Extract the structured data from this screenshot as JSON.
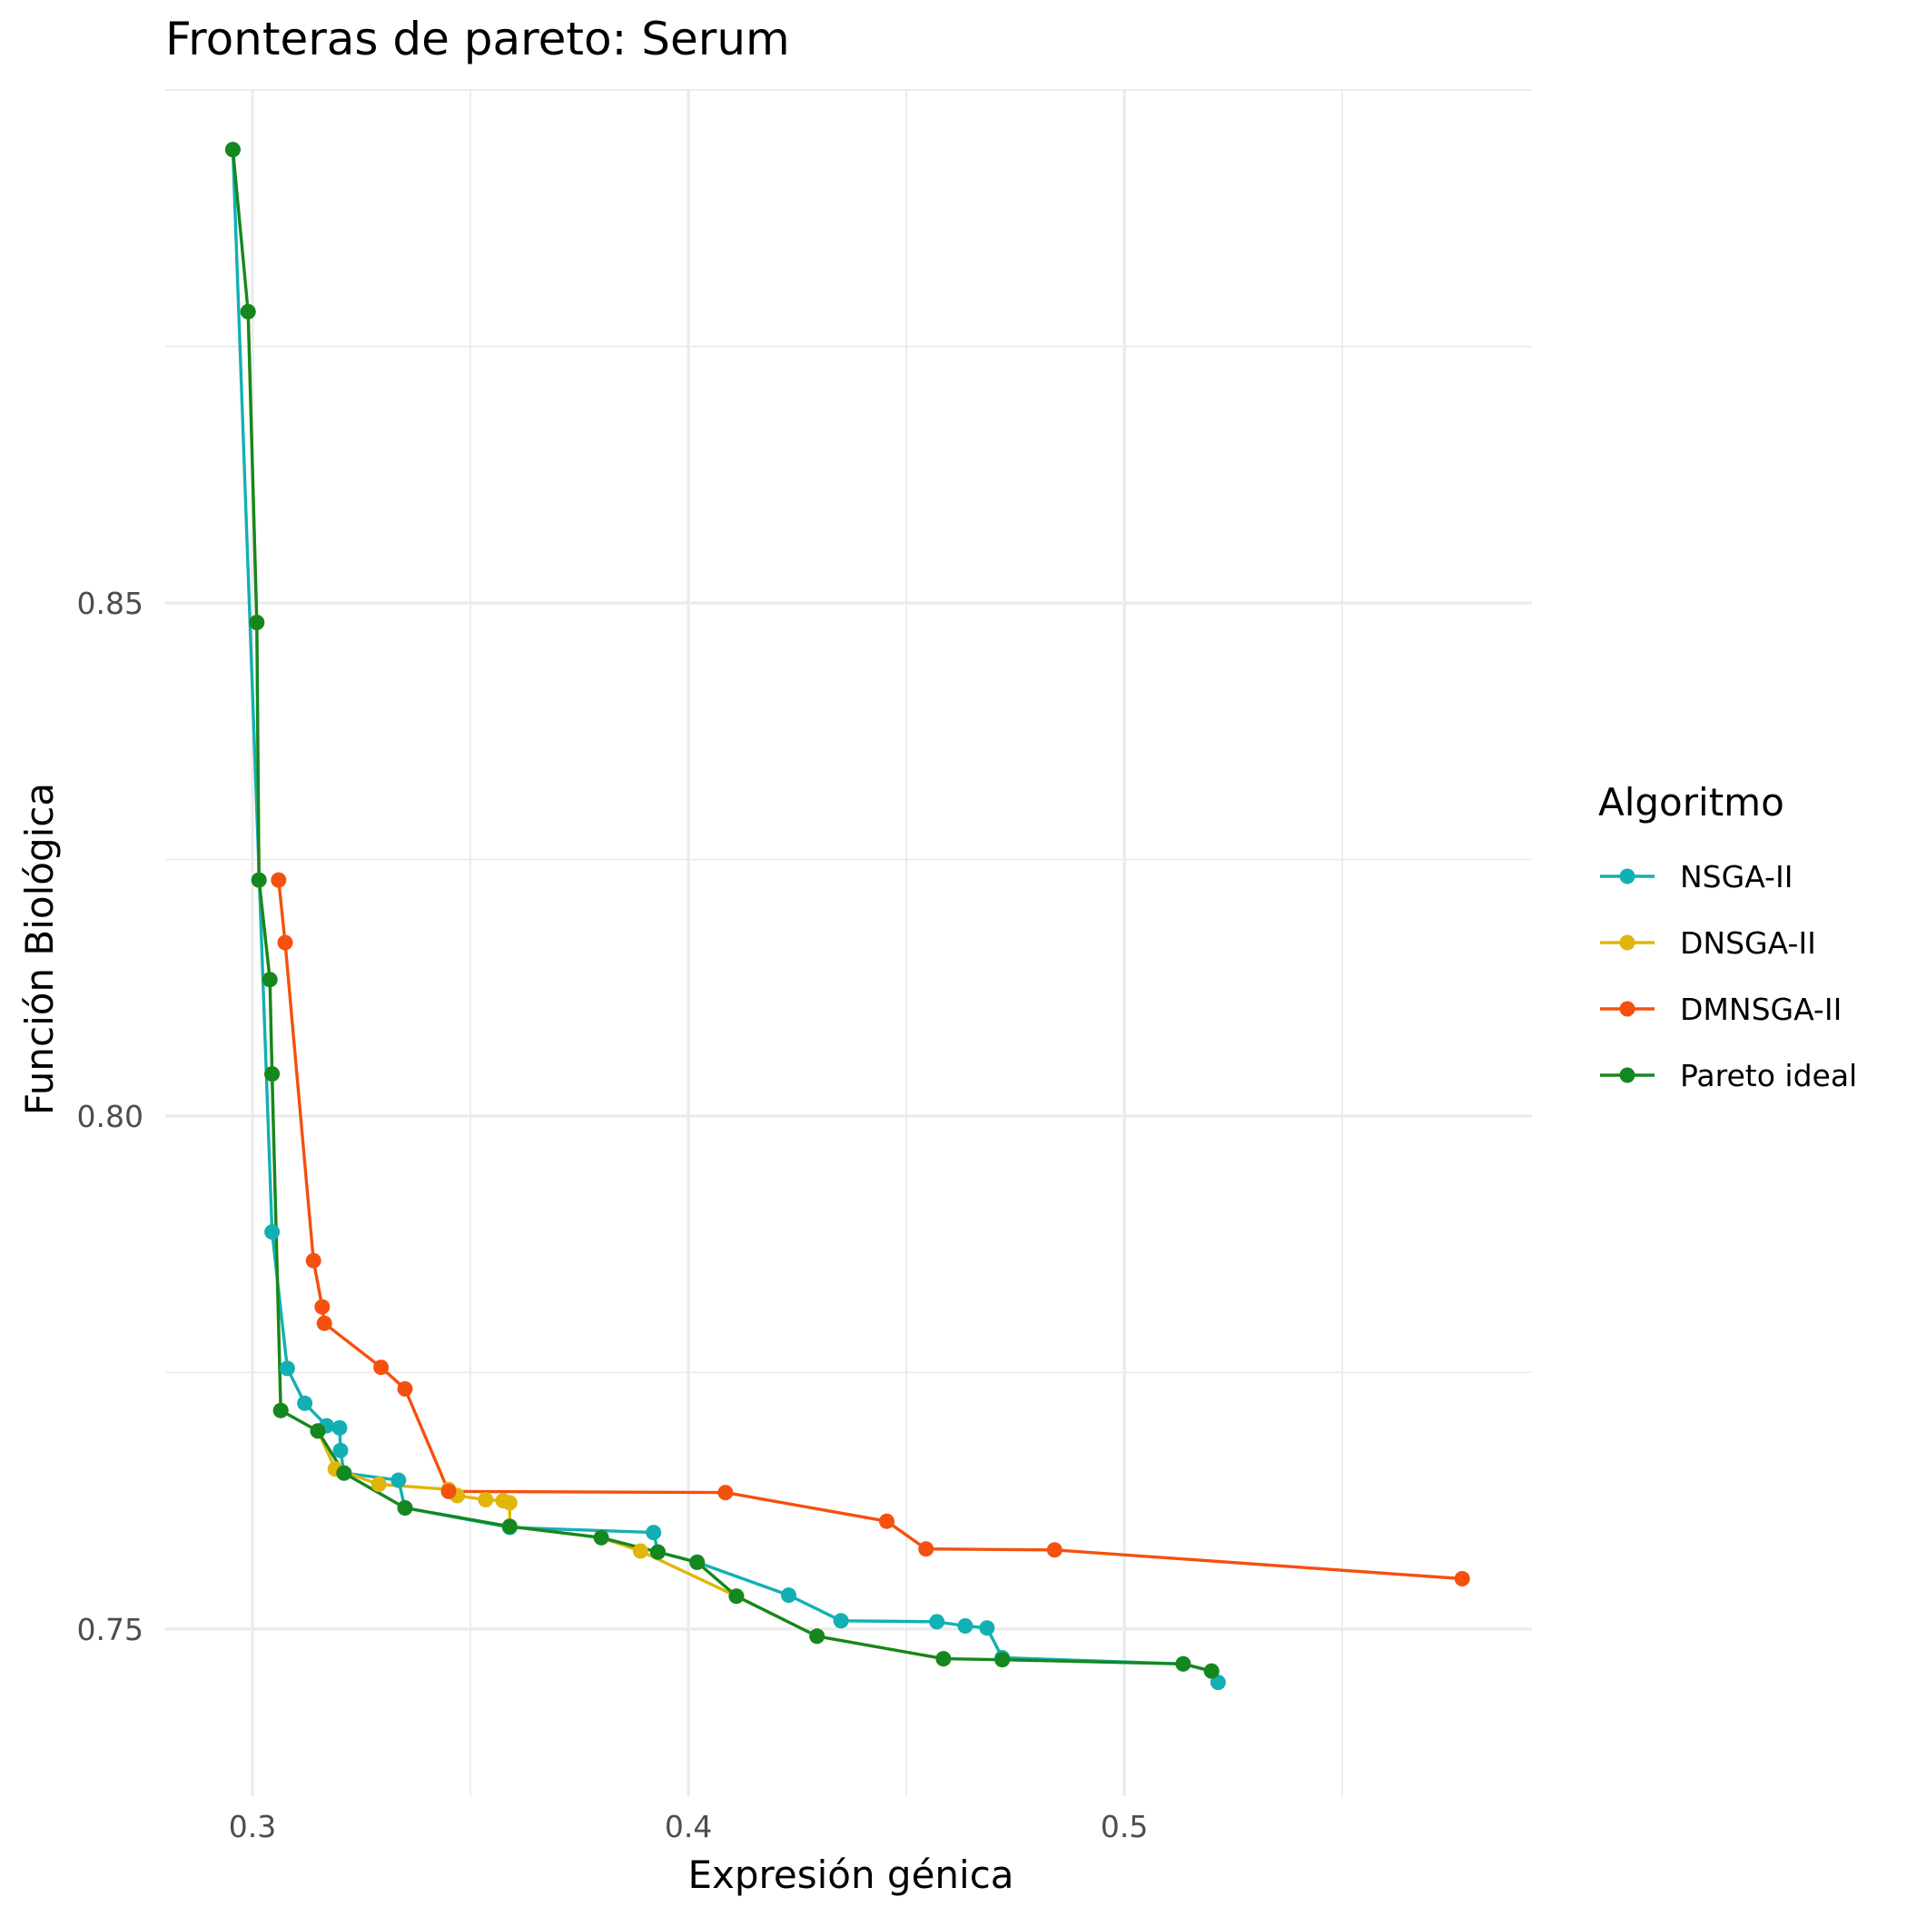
{
  "chart_data": {
    "type": "line",
    "title": "Fronteras de pareto: Serum",
    "xlabel": "Expresión génica",
    "ylabel": "Función Biológica",
    "xlim": [
      0.28,
      0.5935
    ],
    "ylim": [
      0.7337,
      0.9001
    ],
    "x_ticks": [
      0.3,
      0.4,
      0.5
    ],
    "y_ticks": [
      0.75,
      0.8,
      0.85
    ],
    "x_tick_labels": [
      "0.3",
      "0.4",
      "0.5"
    ],
    "y_tick_labels": [
      "0.75",
      "0.80",
      "0.85"
    ],
    "grid": true,
    "legend": {
      "title": "Algoritmo",
      "position": "right"
    },
    "series": [
      {
        "name": "NSGA-II",
        "color": "#12b0b4",
        "points": [
          [
            0.2955,
            0.8942
          ],
          [
            0.3045,
            0.7887
          ],
          [
            0.308,
            0.7754
          ],
          [
            0.312,
            0.772
          ],
          [
            0.317,
            0.7698
          ],
          [
            0.32,
            0.7696
          ],
          [
            0.3202,
            0.7674
          ],
          [
            0.321,
            0.7652
          ],
          [
            0.3335,
            0.7645
          ],
          [
            0.335,
            0.7618
          ],
          [
            0.359,
            0.7599
          ],
          [
            0.392,
            0.7594
          ],
          [
            0.393,
            0.7575
          ],
          [
            0.402,
            0.7565
          ],
          [
            0.423,
            0.7533
          ],
          [
            0.435,
            0.7508
          ],
          [
            0.457,
            0.7507
          ],
          [
            0.4635,
            0.7503
          ],
          [
            0.4685,
            0.7501
          ],
          [
            0.472,
            0.7472
          ],
          [
            0.5135,
            0.7466
          ],
          [
            0.52,
            0.7459
          ],
          [
            0.5215,
            0.7448
          ]
        ]
      },
      {
        "name": "DNSGA-II",
        "color": "#e1b60a",
        "points": [
          [
            0.299,
            0.8784
          ],
          [
            0.301,
            0.8481
          ],
          [
            0.3015,
            0.823
          ],
          [
            0.304,
            0.8133
          ],
          [
            0.3045,
            0.8041
          ],
          [
            0.3065,
            0.7713
          ],
          [
            0.315,
            0.7693
          ],
          [
            0.319,
            0.7656
          ],
          [
            0.329,
            0.7641
          ],
          [
            0.345,
            0.7636
          ],
          [
            0.347,
            0.763
          ],
          [
            0.3535,
            0.7626
          ],
          [
            0.3575,
            0.7625
          ],
          [
            0.359,
            0.7623
          ],
          [
            0.359,
            0.76
          ],
          [
            0.38,
            0.7589
          ],
          [
            0.389,
            0.7576
          ],
          [
            0.411,
            0.7532
          ],
          [
            0.4295,
            0.7493
          ],
          [
            0.4585,
            0.7471
          ]
        ]
      },
      {
        "name": "DMNSGA-II",
        "color": "#f5500e",
        "points": [
          [
            0.306,
            0.823
          ],
          [
            0.3075,
            0.8169
          ],
          [
            0.314,
            0.7859
          ],
          [
            0.316,
            0.7814
          ],
          [
            0.3165,
            0.7798
          ],
          [
            0.3295,
            0.7755
          ],
          [
            0.335,
            0.7734
          ],
          [
            0.345,
            0.7634
          ],
          [
            0.4085,
            0.7633
          ],
          [
            0.4455,
            0.7605
          ],
          [
            0.4545,
            0.7578
          ],
          [
            0.484,
            0.7577
          ],
          [
            0.5775,
            0.7549
          ]
        ]
      },
      {
        "name": "Pareto ideal",
        "color": "#15871f",
        "points": [
          [
            0.2955,
            0.8942
          ],
          [
            0.299,
            0.8784
          ],
          [
            0.301,
            0.8481
          ],
          [
            0.3015,
            0.823
          ],
          [
            0.304,
            0.8133
          ],
          [
            0.3045,
            0.8041
          ],
          [
            0.3065,
            0.7713
          ],
          [
            0.315,
            0.7693
          ],
          [
            0.321,
            0.7652
          ],
          [
            0.335,
            0.7618
          ],
          [
            0.359,
            0.76
          ],
          [
            0.38,
            0.7589
          ],
          [
            0.393,
            0.7575
          ],
          [
            0.402,
            0.7565
          ],
          [
            0.411,
            0.7532
          ],
          [
            0.4295,
            0.7493
          ],
          [
            0.4585,
            0.7471
          ],
          [
            0.472,
            0.747
          ],
          [
            0.5135,
            0.7466
          ],
          [
            0.52,
            0.7459
          ]
        ]
      }
    ]
  }
}
